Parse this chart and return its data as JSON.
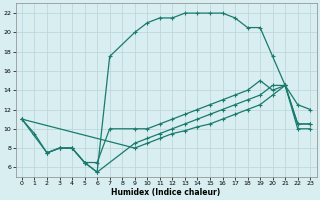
{
  "xlabel": "Humidex (Indice chaleur)",
  "bg_color": "#d8eef0",
  "grid_color": "#b8d4d8",
  "line_color": "#1a7a6e",
  "xlim": [
    -0.5,
    23.5
  ],
  "ylim": [
    5.0,
    23.0
  ],
  "xticks": [
    0,
    1,
    2,
    3,
    4,
    5,
    6,
    7,
    8,
    9,
    10,
    11,
    12,
    13,
    14,
    15,
    16,
    17,
    18,
    19,
    20,
    21,
    22,
    23
  ],
  "yticks": [
    6,
    8,
    10,
    12,
    14,
    16,
    18,
    20,
    22
  ],
  "curve1_x": [
    2,
    3,
    4,
    5,
    6,
    7,
    9,
    10,
    11,
    12,
    13,
    14,
    15,
    16,
    17,
    18,
    19,
    20,
    21,
    22,
    23
  ],
  "curve1_y": [
    7.5,
    8.0,
    8.0,
    6.5,
    5.5,
    17.5,
    20.0,
    21.0,
    21.5,
    21.5,
    22.0,
    22.0,
    22.0,
    22.0,
    21.5,
    20.5,
    20.5,
    17.5,
    14.5,
    12.5,
    12.0
  ],
  "curve2_x": [
    0,
    1,
    2,
    3,
    4,
    5,
    6,
    7,
    9,
    10,
    11,
    12,
    13,
    14,
    15,
    16,
    17,
    18,
    19,
    20,
    21,
    22,
    23
  ],
  "curve2_y": [
    11.0,
    9.5,
    7.5,
    8.0,
    8.0,
    6.5,
    6.5,
    10.0,
    10.0,
    10.0,
    10.5,
    11.0,
    11.5,
    12.0,
    12.5,
    13.0,
    13.5,
    14.0,
    15.0,
    14.0,
    14.5,
    10.0,
    10.0
  ],
  "curve3_x": [
    0,
    2,
    3,
    4,
    5,
    6,
    9,
    10,
    11,
    12,
    13,
    14,
    15,
    16,
    17,
    18,
    19,
    20,
    21,
    22,
    23
  ],
  "curve3_y": [
    11.0,
    7.5,
    8.0,
    8.0,
    6.5,
    5.5,
    8.5,
    9.0,
    9.5,
    10.0,
    10.5,
    11.0,
    11.5,
    12.0,
    12.5,
    13.0,
    13.5,
    14.5,
    14.5,
    10.5,
    10.5
  ],
  "curve4_x": [
    0,
    9,
    10,
    11,
    12,
    13,
    14,
    15,
    16,
    17,
    18,
    19,
    20,
    21,
    22,
    23
  ],
  "curve4_y": [
    11.0,
    8.0,
    8.5,
    9.0,
    9.5,
    9.8,
    10.2,
    10.5,
    11.0,
    11.5,
    12.0,
    12.5,
    13.5,
    14.5,
    10.5,
    10.5
  ]
}
